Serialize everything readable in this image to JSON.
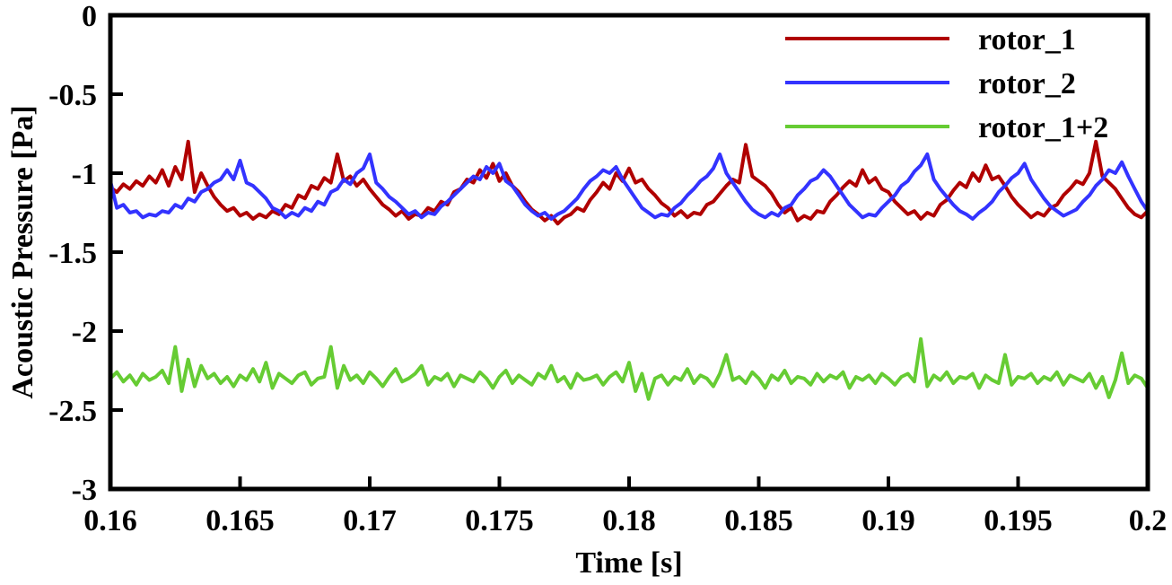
{
  "chart_data": {
    "type": "line",
    "title": "",
    "xlabel": "Time [s]",
    "ylabel": "Acoustic Pressure [Pa]",
    "xlim": [
      0.16,
      0.2
    ],
    "ylim": [
      -3,
      0
    ],
    "xticks": [
      0.16,
      0.165,
      0.17,
      0.175,
      0.18,
      0.185,
      0.19,
      0.195,
      0.2
    ],
    "xtick_labels": [
      "0.16",
      "0.165",
      "0.17",
      "0.175",
      "0.18",
      "0.185",
      "0.19",
      "0.195",
      "0.2"
    ],
    "yticks": [
      0,
      -0.5,
      -1,
      -1.5,
      -2,
      -2.5,
      -3
    ],
    "ytick_labels": [
      "0",
      "-0.5",
      "-1",
      "-1.5",
      "-2",
      "-2.5",
      "-3"
    ],
    "grid": false,
    "legend_position": "top-right",
    "x_start": 0.16,
    "x_step": 0.00025,
    "series": [
      {
        "name": "rotor_1",
        "color": "#b00000",
        "values": [
          -1.09,
          -1.12,
          -1.07,
          -1.1,
          -1.05,
          -1.08,
          -1.02,
          -1.06,
          -0.98,
          -1.08,
          -0.96,
          -1.04,
          -0.8,
          -1.12,
          -1.0,
          -1.08,
          -1.15,
          -1.2,
          -1.24,
          -1.22,
          -1.27,
          -1.25,
          -1.29,
          -1.26,
          -1.28,
          -1.24,
          -1.26,
          -1.2,
          -1.22,
          -1.14,
          -1.16,
          -1.08,
          -1.1,
          -1.03,
          -1.06,
          -0.88,
          -1.05,
          -1.02,
          -1.08,
          -1.04,
          -1.1,
          -1.15,
          -1.2,
          -1.23,
          -1.27,
          -1.24,
          -1.29,
          -1.26,
          -1.27,
          -1.22,
          -1.24,
          -1.18,
          -1.2,
          -1.12,
          -1.1,
          -1.04,
          -1.06,
          -0.98,
          -1.03,
          -0.94,
          -1.05,
          -1.0,
          -1.08,
          -1.12,
          -1.18,
          -1.23,
          -1.26,
          -1.3,
          -1.27,
          -1.32,
          -1.28,
          -1.26,
          -1.22,
          -1.24,
          -1.17,
          -1.12,
          -1.06,
          -1.1,
          -1.0,
          -1.05,
          -0.97,
          -1.06,
          -1.04,
          -1.1,
          -1.14,
          -1.19,
          -1.22,
          -1.27,
          -1.24,
          -1.28,
          -1.25,
          -1.26,
          -1.2,
          -1.18,
          -1.13,
          -1.08,
          -1.04,
          -1.06,
          -0.82,
          -1.02,
          -1.05,
          -1.08,
          -1.13,
          -1.2,
          -1.25,
          -1.22,
          -1.3,
          -1.27,
          -1.29,
          -1.24,
          -1.25,
          -1.18,
          -1.14,
          -1.09,
          -1.05,
          -1.08,
          -0.98,
          -1.06,
          -1.03,
          -1.1,
          -1.12,
          -1.18,
          -1.22,
          -1.26,
          -1.24,
          -1.29,
          -1.25,
          -1.27,
          -1.2,
          -1.17,
          -1.11,
          -1.06,
          -1.09,
          -1.0,
          -1.05,
          -0.95,
          -1.04,
          -1.02,
          -1.08,
          -1.15,
          -1.2,
          -1.24,
          -1.28,
          -1.25,
          -1.27,
          -1.22,
          -1.2,
          -1.14,
          -1.1,
          -1.05,
          -1.07,
          -1.0,
          -0.8,
          -1.02,
          -1.06,
          -1.1,
          -1.16,
          -1.22,
          -1.26,
          -1.28,
          -1.24,
          -1.2,
          -1.14,
          -1.1,
          -1.07
        ]
      },
      {
        "name": "rotor_2",
        "color": "#3333ff",
        "values": [
          -1.05,
          -1.22,
          -1.2,
          -1.25,
          -1.24,
          -1.28,
          -1.26,
          -1.27,
          -1.24,
          -1.25,
          -1.2,
          -1.22,
          -1.16,
          -1.18,
          -1.12,
          -1.1,
          -1.06,
          -1.04,
          -0.98,
          -1.04,
          -0.92,
          -1.06,
          -1.08,
          -1.12,
          -1.16,
          -1.22,
          -1.24,
          -1.28,
          -1.25,
          -1.27,
          -1.22,
          -1.24,
          -1.18,
          -1.2,
          -1.12,
          -1.1,
          -1.04,
          -1.07,
          -1.0,
          -0.97,
          -0.88,
          -1.06,
          -1.1,
          -1.15,
          -1.18,
          -1.22,
          -1.26,
          -1.24,
          -1.28,
          -1.25,
          -1.26,
          -1.21,
          -1.18,
          -1.14,
          -1.1,
          -1.06,
          -1.02,
          -1.04,
          -0.96,
          -1.0,
          -0.94,
          -1.05,
          -1.08,
          -1.14,
          -1.2,
          -1.24,
          -1.27,
          -1.25,
          -1.29,
          -1.26,
          -1.24,
          -1.2,
          -1.16,
          -1.1,
          -1.05,
          -1.02,
          -0.98,
          -1.0,
          -0.96,
          -1.04,
          -1.1,
          -1.16,
          -1.22,
          -1.25,
          -1.28,
          -1.26,
          -1.27,
          -1.22,
          -1.19,
          -1.14,
          -1.1,
          -1.05,
          -1.02,
          -0.97,
          -0.88,
          -1.0,
          -1.06,
          -1.12,
          -1.18,
          -1.23,
          -1.26,
          -1.28,
          -1.25,
          -1.27,
          -1.22,
          -1.2,
          -1.14,
          -1.1,
          -1.05,
          -1.03,
          -0.98,
          -1.02,
          -1.08,
          -1.14,
          -1.2,
          -1.24,
          -1.28,
          -1.26,
          -1.27,
          -1.22,
          -1.18,
          -1.14,
          -1.08,
          -1.05,
          -0.99,
          -0.95,
          -0.88,
          -1.04,
          -1.1,
          -1.15,
          -1.2,
          -1.24,
          -1.26,
          -1.29,
          -1.25,
          -1.22,
          -1.18,
          -1.12,
          -1.08,
          -1.03,
          -1.0,
          -0.94,
          -1.04,
          -1.1,
          -1.16,
          -1.21,
          -1.24,
          -1.27,
          -1.25,
          -1.23,
          -1.18,
          -1.14,
          -1.08,
          -1.04,
          -0.98,
          -1.0,
          -0.93,
          -1.02,
          -1.1,
          -1.18,
          -1.24,
          -1.28
        ]
      },
      {
        "name": "rotor_1+2",
        "color": "#66cc33",
        "values": [
          -2.3,
          -2.26,
          -2.32,
          -2.28,
          -2.34,
          -2.27,
          -2.31,
          -2.29,
          -2.25,
          -2.33,
          -2.1,
          -2.38,
          -2.18,
          -2.35,
          -2.22,
          -2.3,
          -2.27,
          -2.33,
          -2.29,
          -2.35,
          -2.28,
          -2.31,
          -2.24,
          -2.32,
          -2.2,
          -2.36,
          -2.27,
          -2.3,
          -2.33,
          -2.28,
          -2.26,
          -2.34,
          -2.3,
          -2.29,
          -2.1,
          -2.36,
          -2.22,
          -2.31,
          -2.28,
          -2.33,
          -2.26,
          -2.3,
          -2.35,
          -2.29,
          -2.24,
          -2.32,
          -2.3,
          -2.27,
          -2.22,
          -2.34,
          -2.29,
          -2.31,
          -2.27,
          -2.35,
          -2.28,
          -2.3,
          -2.32,
          -2.26,
          -2.3,
          -2.36,
          -2.29,
          -2.25,
          -2.33,
          -2.28,
          -2.31,
          -2.34,
          -2.27,
          -2.3,
          -2.22,
          -2.32,
          -2.29,
          -2.36,
          -2.27,
          -2.31,
          -2.3,
          -2.28,
          -2.34,
          -2.29,
          -2.26,
          -2.32,
          -2.2,
          -2.38,
          -2.27,
          -2.43,
          -2.3,
          -2.28,
          -2.34,
          -2.29,
          -2.31,
          -2.24,
          -2.33,
          -2.28,
          -2.3,
          -2.35,
          -2.27,
          -2.15,
          -2.31,
          -2.29,
          -2.33,
          -2.26,
          -2.3,
          -2.36,
          -2.28,
          -2.31,
          -2.25,
          -2.33,
          -2.29,
          -2.3,
          -2.34,
          -2.27,
          -2.32,
          -2.28,
          -2.3,
          -2.26,
          -2.36,
          -2.29,
          -2.31,
          -2.28,
          -2.33,
          -2.27,
          -2.3,
          -2.34,
          -2.29,
          -2.27,
          -2.32,
          -2.05,
          -2.35,
          -2.28,
          -2.31,
          -2.26,
          -2.33,
          -2.29,
          -2.3,
          -2.27,
          -2.36,
          -2.28,
          -2.31,
          -2.33,
          -2.15,
          -2.34,
          -2.29,
          -2.3,
          -2.27,
          -2.33,
          -2.29,
          -2.31,
          -2.26,
          -2.34,
          -2.28,
          -2.3,
          -2.32,
          -2.27,
          -2.36,
          -2.29,
          -2.42,
          -2.31,
          -2.14,
          -2.33,
          -2.28,
          -2.3,
          -2.36,
          -2.27
        ]
      }
    ]
  }
}
